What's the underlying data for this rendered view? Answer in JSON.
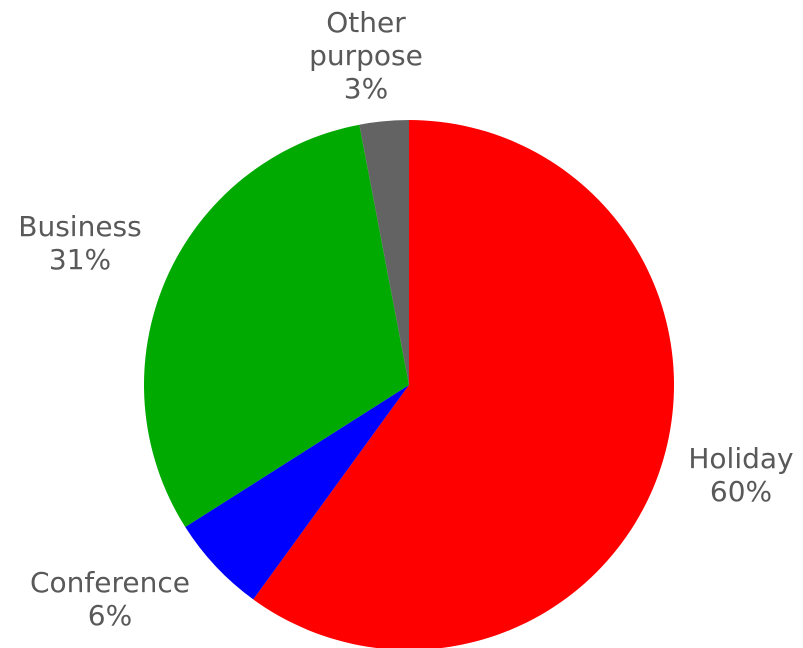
{
  "chart_data": {
    "type": "pie",
    "categories": [
      "Holiday",
      "Conference",
      "Business",
      "Other purpose"
    ],
    "values": [
      60,
      6,
      31,
      3
    ],
    "value_labels": [
      "60%",
      "6%",
      "31%",
      "3%"
    ],
    "label_lines": [
      [
        "Holiday",
        "60%"
      ],
      [
        "Conference",
        "6%"
      ],
      [
        "Business",
        "31%"
      ],
      [
        "Other",
        "purpose",
        "3%"
      ]
    ],
    "colors": [
      "#ff0000",
      "#0000ff",
      "#00aa00",
      "#636363"
    ],
    "start_angle_deg": 0,
    "direction": "clockwise",
    "legend": "none",
    "title": ""
  }
}
